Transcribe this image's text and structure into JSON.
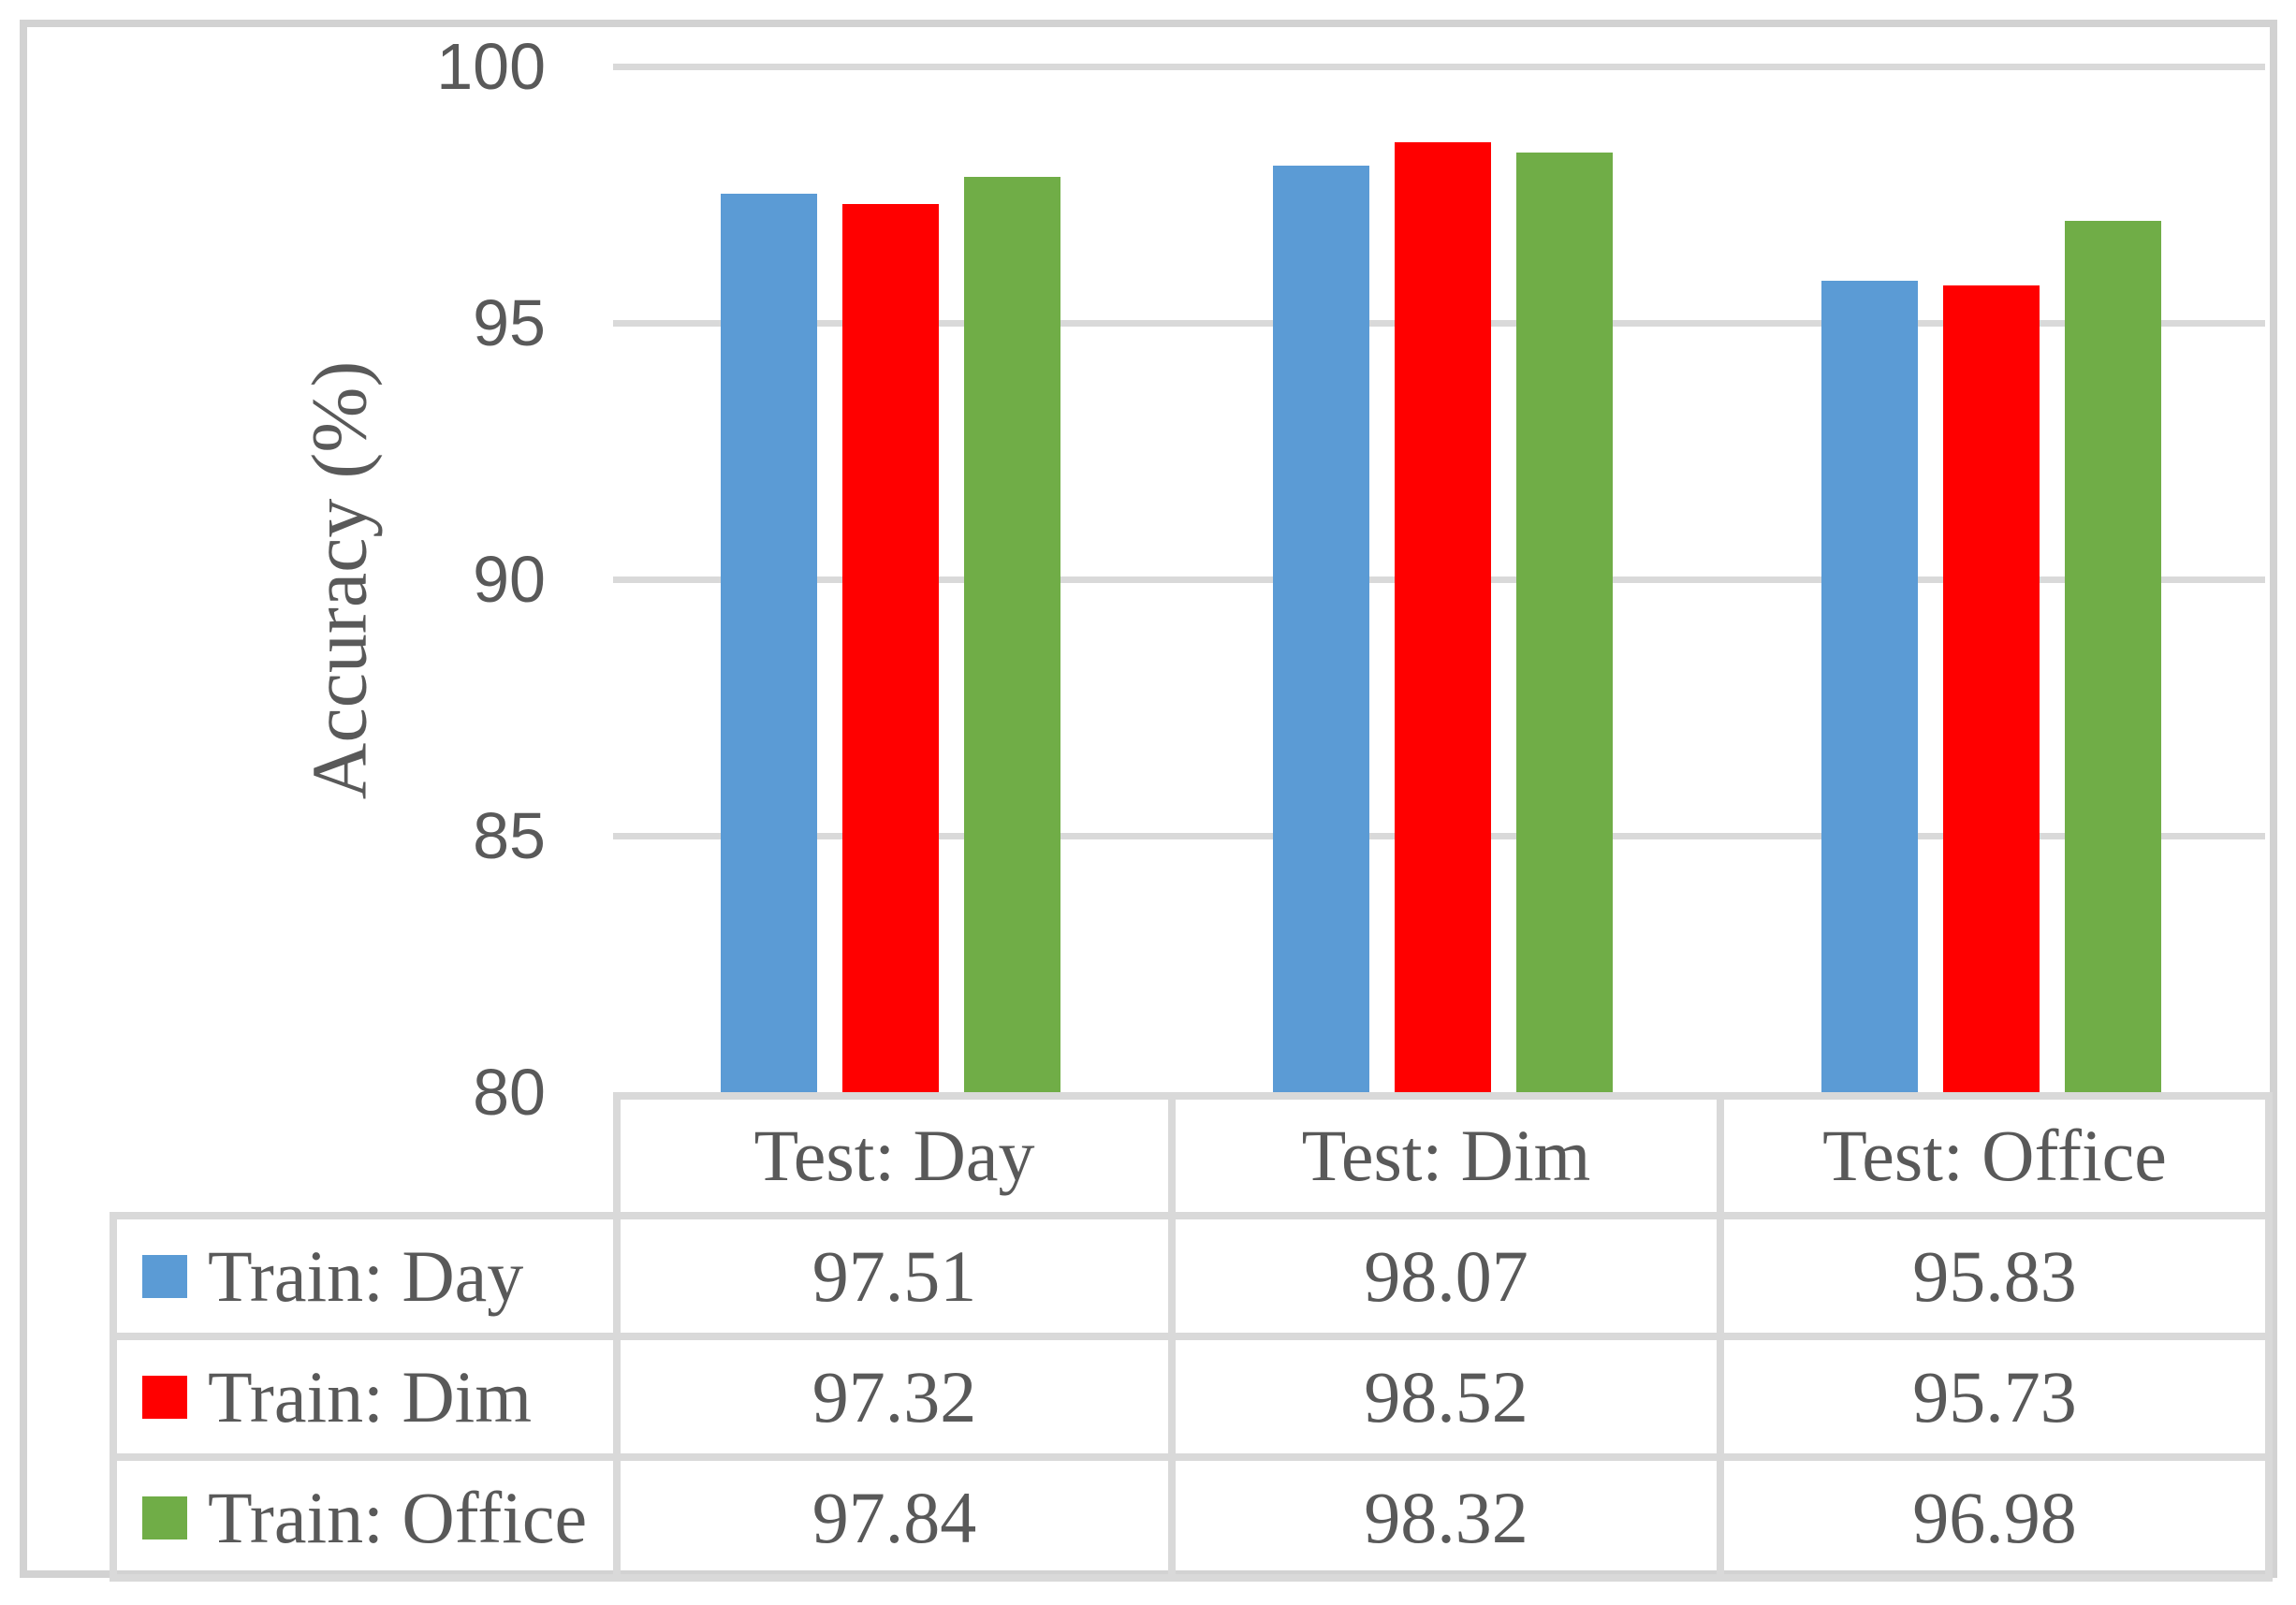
{
  "chart_data": {
    "type": "bar",
    "title": "",
    "xlabel": "",
    "ylabel": "Accuracy (%)",
    "ylim": [
      80,
      100
    ],
    "yticks": [
      100,
      95,
      90,
      85,
      80
    ],
    "grid": true,
    "legend_position": "table-below-chart",
    "categories": [
      "Test: Day",
      "Test: Dim",
      "Test: Office"
    ],
    "series": [
      {
        "name": "Train: Day",
        "color": "#5B9BD5",
        "values": [
          97.51,
          98.07,
          95.83
        ]
      },
      {
        "name": "Train: Dim",
        "color": "#FF0000",
        "values": [
          97.32,
          98.52,
          95.73
        ]
      },
      {
        "name": "Train: Office",
        "color": "#70AD47",
        "values": [
          97.84,
          98.32,
          96.98
        ]
      }
    ]
  },
  "table": {
    "column_headers": [
      "Test: Day",
      "Test: Dim",
      "Test: Office"
    ],
    "rows": [
      {
        "label": "Train: Day",
        "swatch_color": "#5B9BD5",
        "values": [
          "97.51",
          "98.07",
          "95.83"
        ]
      },
      {
        "label": "Train: Dim",
        "swatch_color": "#FF0000",
        "values": [
          "97.32",
          "98.52",
          "95.73"
        ]
      },
      {
        "label": "Train: Office",
        "swatch_color": "#70AD47",
        "values": [
          "97.84",
          "98.32",
          "96.98"
        ]
      }
    ]
  },
  "colors": {
    "text": "#595959",
    "gridline": "#D9D9D9",
    "table_border": "#D9D9D9",
    "frame_border": "#D2D2D2",
    "background": "#FFFFFF"
  }
}
